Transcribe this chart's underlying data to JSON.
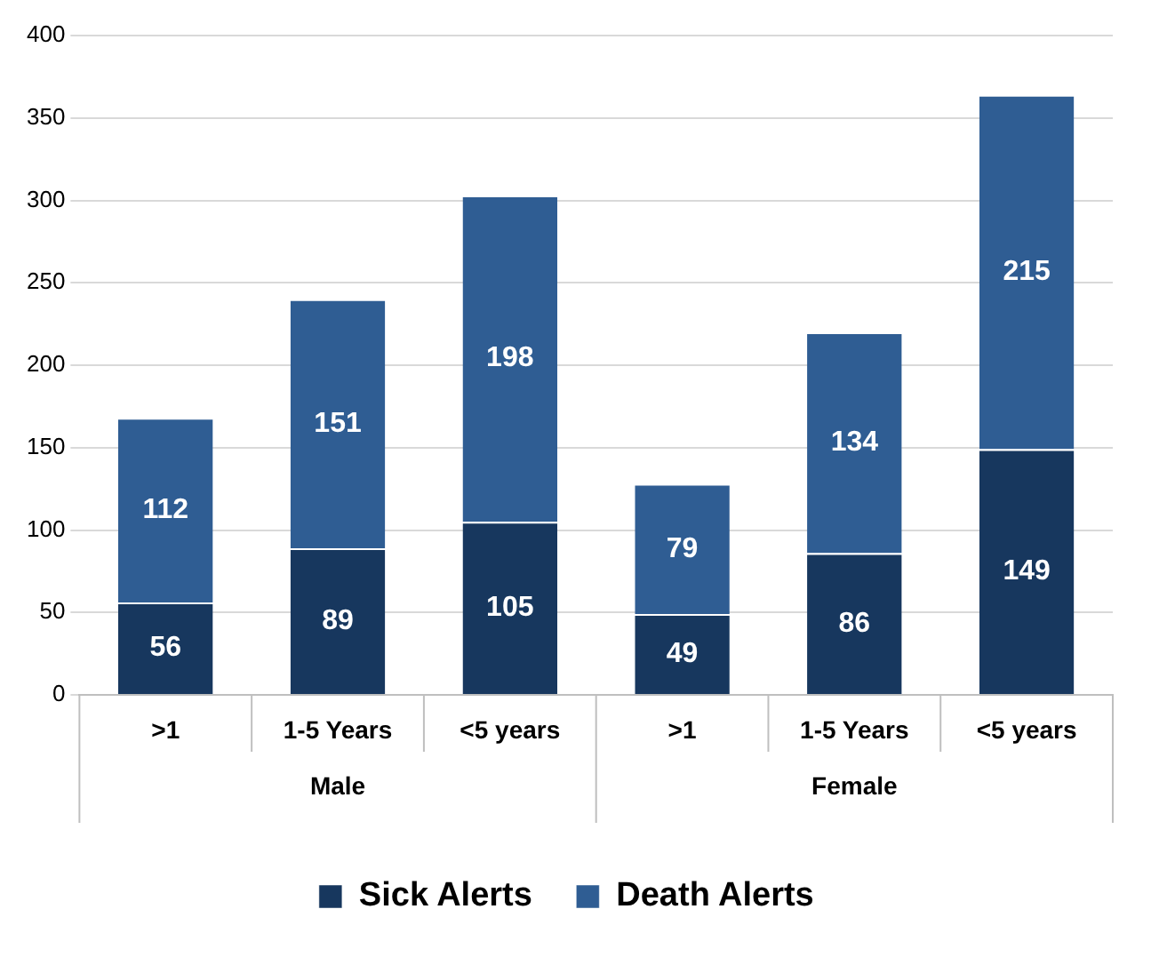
{
  "chart_data": {
    "type": "bar",
    "stacked": true,
    "categories": [
      ">1",
      "1-5 Years",
      "<5 years",
      ">1",
      "1-5 Years",
      "<5 years"
    ],
    "series": [
      {
        "name": "Sick Alerts",
        "color": "#17375e",
        "values": [
          56,
          89,
          105,
          49,
          86,
          149
        ]
      },
      {
        "name": "Death Alerts",
        "color": "#2f5d93",
        "values": [
          112,
          151,
          198,
          79,
          134,
          215
        ]
      }
    ],
    "ylim": [
      0,
      400
    ],
    "yticks": [
      0,
      50,
      100,
      150,
      200,
      250,
      300,
      350,
      400
    ],
    "grid": "y",
    "legend": "bottom",
    "data_labels": true,
    "annotations": [
      "Male",
      "Female"
    ]
  }
}
